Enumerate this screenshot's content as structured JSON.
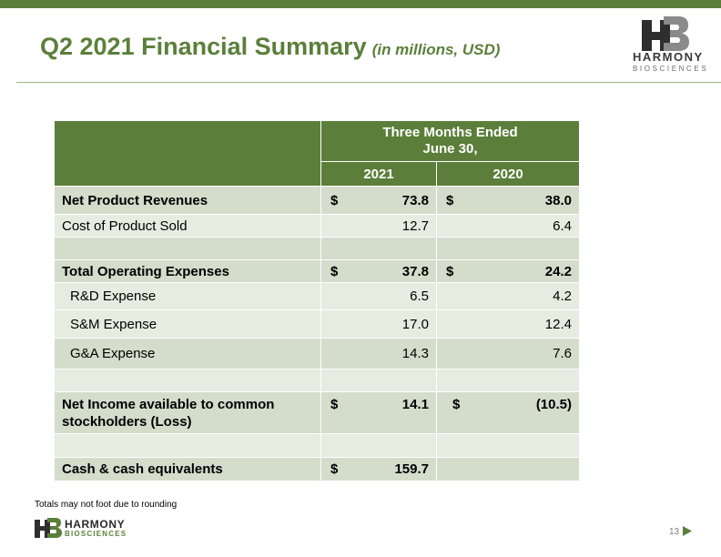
{
  "slide": {
    "title": "Q2 2021 Financial Summary",
    "subtitle": "(in millions, USD)",
    "page_number": "13",
    "footnote": "Totals may not foot due to rounding",
    "accent_color": "#5b7f3a"
  },
  "logo": {
    "name": "HARMONY",
    "tagline": "BIOSCIENCES",
    "icon": "hb-monogram-icon"
  },
  "table": {
    "period_header": [
      "Three Months Ended",
      "June 30,"
    ],
    "years": [
      "2021",
      "2020"
    ],
    "rows": [
      {
        "label": "Net Product Revenues",
        "bold": true,
        "c1_cur": "$",
        "c1": "73.8",
        "c2_cur": "$",
        "c2": "38.0"
      },
      {
        "label": "Cost of Product Sold",
        "bold": false,
        "c1_cur": "",
        "c1": "12.7",
        "c2_cur": "",
        "c2": "6.4"
      },
      {
        "label": "",
        "bold": false,
        "c1_cur": "",
        "c1": "",
        "c2_cur": "",
        "c2": ""
      },
      {
        "label": "Total Operating Expenses",
        "bold": true,
        "c1_cur": "$",
        "c1": "37.8",
        "c2_cur": "$",
        "c2": "24.2"
      },
      {
        "label": "R&D Expense",
        "bold": false,
        "c1_cur": "",
        "c1": "6.5",
        "c2_cur": "",
        "c2": "4.2"
      },
      {
        "label": "S&M Expense",
        "bold": false,
        "c1_cur": "",
        "c1": "17.0",
        "c2_cur": "",
        "c2": "12.4"
      },
      {
        "label": "G&A Expense",
        "bold": false,
        "c1_cur": "",
        "c1": "14.3",
        "c2_cur": "",
        "c2": "7.6"
      },
      {
        "label": "",
        "bold": false,
        "c1_cur": "",
        "c1": "",
        "c2_cur": "",
        "c2": ""
      },
      {
        "label": "Net Income available to common stockholders (Loss)",
        "bold": true,
        "c1_cur": "$",
        "c1": "14.1",
        "c2_cur": "$",
        "c2": "(10.5)"
      },
      {
        "label": "",
        "bold": false,
        "c1_cur": "",
        "c1": "",
        "c2_cur": "",
        "c2": ""
      },
      {
        "label": "Cash & cash equivalents",
        "bold": true,
        "c1_cur": "$",
        "c1": "159.7",
        "c2_cur": "",
        "c2": ""
      }
    ]
  }
}
